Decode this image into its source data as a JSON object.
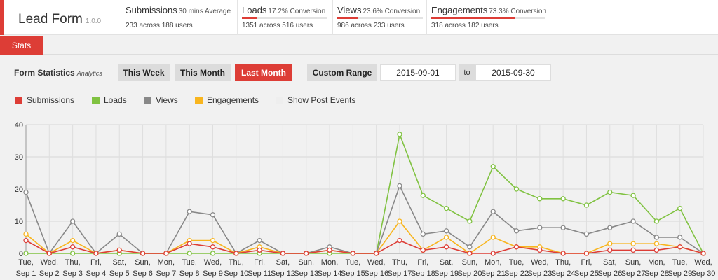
{
  "app": {
    "title": "Lead Form",
    "version": "1.0.0"
  },
  "metrics": [
    {
      "title": "Submissions",
      "note": "30 mins Average",
      "summary": "233 across 188 users"
    },
    {
      "title": "Loads",
      "note": "17.2% Conversion",
      "summary": "1351 across 516 users",
      "progress": 0.172
    },
    {
      "title": "Views",
      "note": "23.6% Conversion",
      "summary": "986 across 233 users",
      "progress": 0.236
    },
    {
      "title": "Engagements",
      "note": "73.3% Conversion",
      "summary": "318 across 182 users",
      "progress": 0.733
    }
  ],
  "tabs": {
    "stats": "Stats"
  },
  "controls": {
    "section_title": "Form Statistics",
    "section_subtitle": "Analytics",
    "this_week": "This Week",
    "this_month": "This Month",
    "last_month": "Last Month",
    "custom_range": "Custom Range",
    "to": "to",
    "start_date": "2015-09-01",
    "end_date": "2015-09-30",
    "active_range": "Last Month"
  },
  "legend": [
    {
      "label": "Submissions",
      "color": "#dd3d36"
    },
    {
      "label": "Loads",
      "color": "#80c241"
    },
    {
      "label": "Views",
      "color": "#888888"
    },
    {
      "label": "Engagements",
      "color": "#f8b51e"
    },
    {
      "label": "Show Post Events",
      "color": "#eeeeee"
    }
  ],
  "colors": {
    "accent": "#dd3d36"
  },
  "chart_data": {
    "type": "line",
    "ylim": [
      0,
      40
    ],
    "yticks": [
      0,
      10,
      20,
      30,
      40
    ],
    "grid": true,
    "categories": [
      [
        "Tue,",
        "Sep 1"
      ],
      [
        "Wed,",
        "Sep 2"
      ],
      [
        "Thu,",
        "Sep 3"
      ],
      [
        "Fri,",
        "Sep 4"
      ],
      [
        "Sat,",
        "Sep 5"
      ],
      [
        "Sun,",
        "Sep 6"
      ],
      [
        "Mon,",
        "Sep 7"
      ],
      [
        "Tue,",
        "Sep 8"
      ],
      [
        "Wed,",
        "Sep 9"
      ],
      [
        "Thu,",
        "Sep 10"
      ],
      [
        "Fri,",
        "Sep 11"
      ],
      [
        "Sat,",
        "Sep 12"
      ],
      [
        "Sun,",
        "Sep 13"
      ],
      [
        "Mon,",
        "Sep 14"
      ],
      [
        "Tue,",
        "Sep 15"
      ],
      [
        "Wed,",
        "Sep 16"
      ],
      [
        "Thu,",
        "Sep 17"
      ],
      [
        "Fri,",
        "Sep 18"
      ],
      [
        "Sat,",
        "Sep 19"
      ],
      [
        "Sun,",
        "Sep 20"
      ],
      [
        "Mon,",
        "Sep 21"
      ],
      [
        "Tue,",
        "Sep 22"
      ],
      [
        "Wed,",
        "Sep 23"
      ],
      [
        "Thu,",
        "Sep 24"
      ],
      [
        "Fri,",
        "Sep 25"
      ],
      [
        "Sat,",
        "Sep 26"
      ],
      [
        "Sun,",
        "Sep 27"
      ],
      [
        "Mon,",
        "Sep 28"
      ],
      [
        "Tue,",
        "Sep 29"
      ],
      [
        "Wed,",
        "Sep 30"
      ]
    ],
    "series": [
      {
        "name": "Loads",
        "color": "#80c241",
        "values": [
          0,
          0,
          0,
          0,
          0,
          0,
          0,
          0,
          0,
          0,
          0,
          0,
          0,
          0,
          0,
          0,
          37,
          18,
          14,
          10,
          27,
          20,
          17,
          17,
          15,
          19,
          18,
          10,
          14,
          0
        ]
      },
      {
        "name": "Views",
        "color": "#888888",
        "values": [
          19,
          0,
          10,
          0,
          6,
          0,
          0,
          13,
          12,
          0,
          4,
          0,
          0,
          2,
          0,
          0,
          21,
          6,
          7,
          2,
          13,
          7,
          8,
          8,
          6,
          8,
          10,
          5,
          5,
          0
        ]
      },
      {
        "name": "Engagements",
        "color": "#f8b51e",
        "values": [
          6,
          0,
          4,
          0,
          1,
          0,
          0,
          4,
          4,
          0,
          2,
          0,
          0,
          1,
          0,
          0,
          10,
          1,
          5,
          0,
          5,
          2,
          2,
          0,
          0,
          3,
          3,
          3,
          2,
          0
        ]
      },
      {
        "name": "Submissions",
        "color": "#dd3d36",
        "values": [
          4,
          0,
          2,
          0,
          1,
          0,
          0,
          3,
          2,
          0,
          1,
          0,
          0,
          1,
          0,
          0,
          4,
          1,
          2,
          0,
          0,
          2,
          1,
          0,
          0,
          1,
          1,
          1,
          2,
          0
        ]
      }
    ]
  }
}
